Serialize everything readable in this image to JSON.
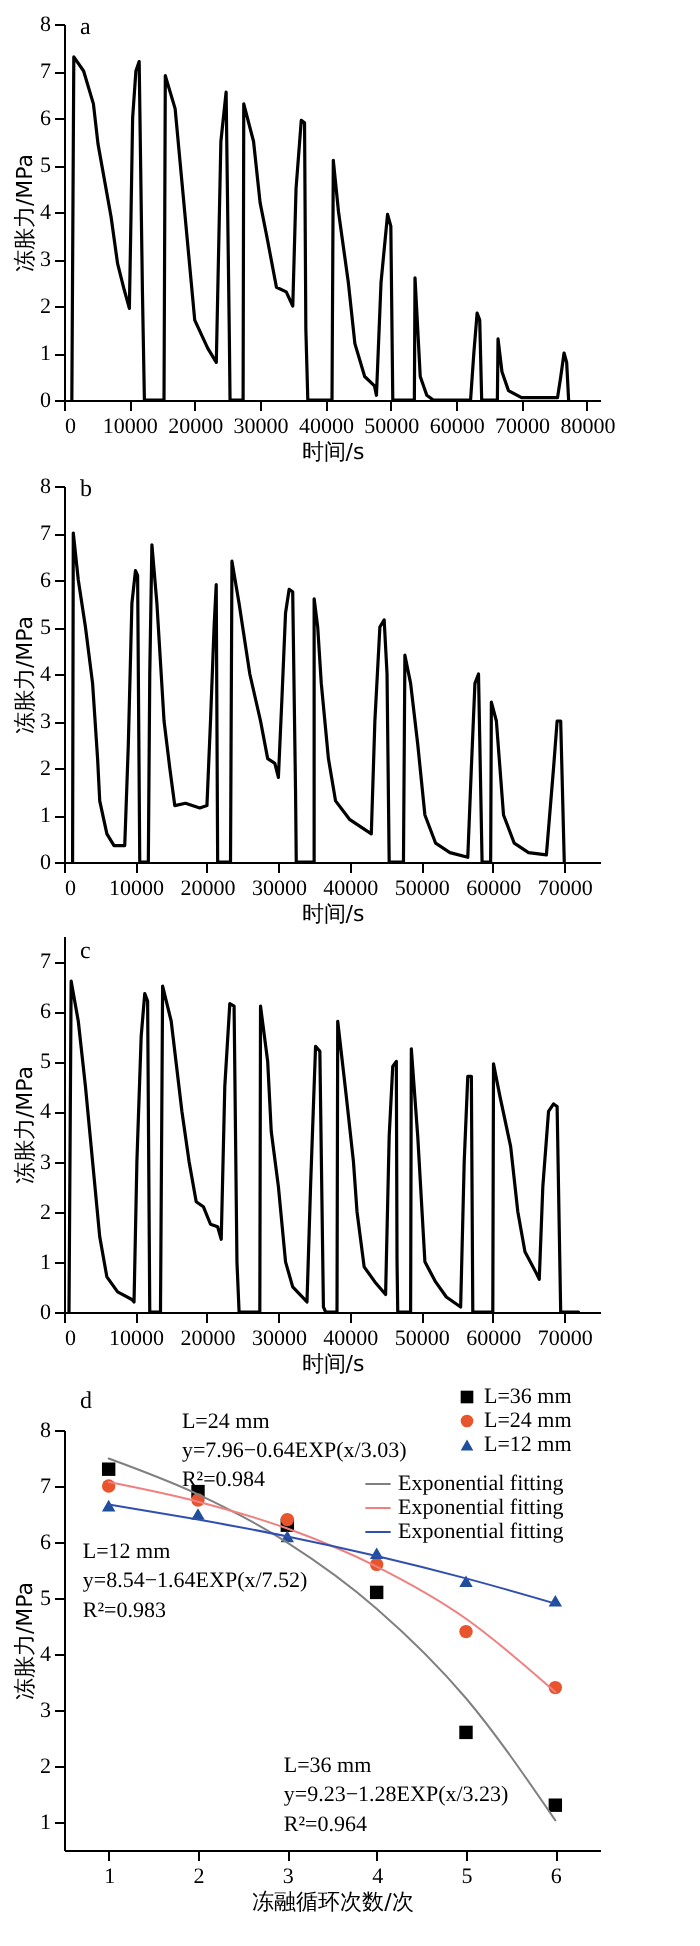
{
  "chart_data": [
    {
      "type": "line",
      "title": "a",
      "xlabel": "时间/s",
      "ylabel": "冻胀力/MPa",
      "color": "#000000",
      "xlim": [
        0,
        82000
      ],
      "ylim": [
        0,
        8
      ],
      "xticks": [
        0,
        10000,
        20000,
        30000,
        40000,
        50000,
        60000,
        70000,
        80000
      ],
      "yticks": [
        0,
        1,
        2,
        3,
        4,
        5,
        6,
        7,
        8
      ],
      "x": [
        1200,
        1500,
        3000,
        4500,
        5200,
        7200,
        8200,
        9200,
        10000,
        10200,
        10500,
        11000,
        11500,
        12000,
        12300,
        15300,
        15500,
        17000,
        18000,
        20000,
        22000,
        23300,
        24000,
        24800,
        25300,
        25400,
        27400,
        27500,
        29000,
        30000,
        31000,
        32500,
        34000,
        35000,
        35500,
        36300,
        36800,
        37000,
        37300,
        41000,
        41200,
        42000,
        43500,
        44500,
        46000,
        47500,
        47800,
        48500,
        49500,
        50000,
        50300,
        53600,
        53700,
        54500,
        55500,
        56500,
        62200,
        62700,
        63200,
        63600,
        63900,
        66300,
        66400,
        67000,
        68000,
        70000,
        75500,
        76000,
        76500,
        76900,
        77200
      ],
      "values": [
        0,
        7.3,
        7.0,
        6.3,
        5.45,
        3.9,
        2.9,
        2.35,
        1.95,
        3.5,
        6.0,
        7.0,
        7.2,
        2.3,
        0,
        0,
        6.9,
        6.2,
        4.7,
        1.7,
        1.1,
        0.8,
        5.5,
        6.55,
        1.3,
        0,
        0,
        6.3,
        5.5,
        4.2,
        3.5,
        2.4,
        2.3,
        2.0,
        4.5,
        5.95,
        5.9,
        1.5,
        0,
        0,
        5.1,
        4.0,
        2.5,
        1.2,
        0.5,
        0.3,
        0.1,
        2.5,
        3.95,
        3.7,
        0,
        0,
        2.6,
        0.5,
        0.1,
        0,
        0,
        1.0,
        1.85,
        1.7,
        0,
        0,
        1.3,
        0.6,
        0.2,
        0.05,
        0.05,
        0.5,
        1.0,
        0.8,
        0
      ]
    },
    {
      "type": "line",
      "title": "b",
      "xlabel": "时间/s",
      "ylabel": "冻胀力/MPa",
      "color": "#000000",
      "xlim": [
        0,
        75000
      ],
      "ylim": [
        0,
        8
      ],
      "xticks": [
        0,
        10000,
        20000,
        30000,
        40000,
        50000,
        60000,
        70000
      ],
      "yticks": [
        0,
        1,
        2,
        3,
        4,
        5,
        6,
        7,
        8
      ],
      "x": [
        1200,
        1300,
        2000,
        3000,
        4000,
        4700,
        5000,
        6000,
        7000,
        8500,
        9000,
        9500,
        10000,
        10300,
        10600,
        11800,
        12000,
        12300,
        13000,
        14000,
        14800,
        15500,
        17000,
        19000,
        20000,
        20500,
        21000,
        21300,
        21500,
        23300,
        23500,
        24500,
        26000,
        27500,
        28500,
        29500,
        30000,
        30500,
        31000,
        31500,
        32000,
        32400,
        32500,
        35000,
        35000,
        35500,
        36000,
        37000,
        38000,
        40000,
        42000,
        43000,
        43500,
        44200,
        44800,
        45200,
        45500,
        47500,
        47700,
        48500,
        49500,
        50500,
        52000,
        54000,
        56500,
        57000,
        57500,
        58000,
        58500,
        59700,
        59800,
        60500,
        61500,
        63000,
        65000,
        67500,
        68500,
        69000,
        69500,
        70000
      ],
      "values": [
        0,
        7.0,
        6.0,
        5.0,
        3.8,
        2.2,
        1.3,
        0.6,
        0.35,
        0.35,
        2.5,
        5.5,
        6.2,
        6.1,
        0,
        0,
        4.0,
        6.75,
        5.5,
        3.0,
        2.0,
        1.2,
        1.25,
        1.15,
        1.2,
        3.0,
        5.0,
        5.9,
        0,
        0,
        6.4,
        5.5,
        4.0,
        3.0,
        2.2,
        2.1,
        1.8,
        3.5,
        5.3,
        5.8,
        5.75,
        1.5,
        0,
        0,
        5.6,
        5.0,
        3.8,
        2.2,
        1.3,
        0.9,
        0.7,
        0.6,
        3.0,
        5.0,
        5.15,
        4.0,
        0,
        0,
        4.4,
        3.8,
        2.5,
        1.0,
        0.4,
        0.2,
        0.1,
        2.0,
        3.8,
        4.0,
        0,
        0,
        3.4,
        3.0,
        1.0,
        0.4,
        0.2,
        0.15,
        2.0,
        3.0,
        3.0,
        0
      ]
    },
    {
      "type": "line",
      "title": "c",
      "xlabel": "时间/s",
      "ylabel": "冻胀力/MPa",
      "color": "#000000",
      "xlim": [
        0,
        75000
      ],
      "ylim": [
        0,
        7.5
      ],
      "xticks": [
        0,
        10000,
        20000,
        30000,
        40000,
        50000,
        60000,
        70000
      ],
      "yticks": [
        0,
        1,
        2,
        3,
        4,
        5,
        6,
        7
      ],
      "x": [
        700,
        1000,
        2000,
        3000,
        4000,
        5000,
        6000,
        7500,
        9500,
        9800,
        10200,
        10800,
        11300,
        11700,
        12000,
        13500,
        13800,
        15000,
        16500,
        17500,
        18500,
        19500,
        20500,
        21500,
        22000,
        22500,
        23200,
        23800,
        24200,
        24500,
        27400,
        27500,
        28500,
        29000,
        30000,
        31000,
        32000,
        33000,
        34000,
        34500,
        35200,
        35800,
        36300,
        36600,
        38200,
        38300,
        39500,
        40500,
        41000,
        42000,
        43500,
        45000,
        45500,
        46000,
        46500,
        46600,
        46700,
        48500,
        48600,
        49500,
        50500,
        52000,
        53500,
        55500,
        56000,
        56500,
        57000,
        57200,
        60000,
        60100,
        61000,
        62500,
        63500,
        64500,
        66000,
        66500,
        67000,
        67800,
        68500,
        69000,
        69500,
        72000
      ],
      "values": [
        0,
        6.6,
        5.8,
        4.5,
        3.0,
        1.5,
        0.7,
        0.4,
        0.25,
        0.2,
        3.0,
        5.5,
        6.35,
        6.2,
        0,
        0,
        6.5,
        5.8,
        4.0,
        3.0,
        2.2,
        2.1,
        1.75,
        1.7,
        1.45,
        4.5,
        6.15,
        6.1,
        1.0,
        0,
        0,
        6.1,
        5.0,
        3.6,
        2.5,
        1.0,
        0.5,
        0.35,
        0.2,
        2.5,
        5.3,
        5.2,
        0.1,
        0,
        0,
        5.8,
        4.3,
        3.0,
        2.0,
        0.9,
        0.6,
        0.35,
        3.5,
        4.9,
        5.0,
        1.0,
        0,
        0,
        5.25,
        3.5,
        1.0,
        0.6,
        0.3,
        0.1,
        3.0,
        4.7,
        4.7,
        0,
        0,
        4.95,
        4.3,
        3.3,
        2.0,
        1.2,
        0.8,
        0.65,
        2.5,
        4.0,
        4.15,
        4.1,
        0,
        0
      ]
    },
    {
      "type": "scatter",
      "title": "d",
      "xlabel": "冻融循环次数/次",
      "ylabel": "冻胀力/MPa",
      "xlim": [
        0.5,
        6.5
      ],
      "ylim": [
        0.5,
        8
      ],
      "xticks": [
        1,
        2,
        3,
        4,
        5,
        6
      ],
      "yticks": [
        1,
        2,
        3,
        4,
        5,
        6,
        7,
        8
      ],
      "legend": "top right",
      "x": [
        1,
        2,
        3,
        4,
        5,
        6
      ],
      "series": [
        {
          "name": "L=36 mm",
          "marker": "square",
          "color": "#000000",
          "values": [
            7.3,
            6.9,
            6.3,
            5.1,
            2.6,
            1.3
          ]
        },
        {
          "name": "L=24 mm",
          "marker": "circle",
          "color": "#e8552d",
          "values": [
            7.0,
            6.75,
            6.4,
            5.6,
            4.4,
            3.4
          ]
        },
        {
          "name": "L=12 mm",
          "marker": "triangle",
          "color": "#1f4e9a",
          "values": [
            6.65,
            6.5,
            6.1,
            5.8,
            5.3,
            4.95
          ]
        },
        {
          "name": "Exponential fitting",
          "type": "line",
          "color": "#808080",
          "x": [
            1,
            2,
            3,
            4,
            5,
            6
          ],
          "values": [
            7.49,
            6.85,
            5.99,
            4.81,
            3.21,
            1.03
          ]
        },
        {
          "name": "Exponential fitting",
          "type": "line",
          "color": "#f08080",
          "x": [
            1,
            2,
            3,
            4,
            5,
            6
          ],
          "values": [
            7.07,
            6.72,
            6.24,
            5.56,
            4.63,
            3.32
          ]
        },
        {
          "name": "Exponential fitting",
          "type": "line",
          "color": "#3050b0",
          "x": [
            1,
            2,
            3,
            4,
            5,
            6
          ],
          "values": [
            6.67,
            6.4,
            6.1,
            5.75,
            5.35,
            4.9
          ]
        }
      ],
      "annotations": [
        "L=24 mm",
        "y=7.96−0.64EXP(x/3.03)",
        "R²=0.984",
        "L=12 mm",
        "y=8.54−1.64EXP(x/7.52)",
        "R²=0.983",
        "L=36 mm",
        "y=9.23−1.28EXP(x/3.23)",
        "R²=0.964"
      ]
    }
  ]
}
